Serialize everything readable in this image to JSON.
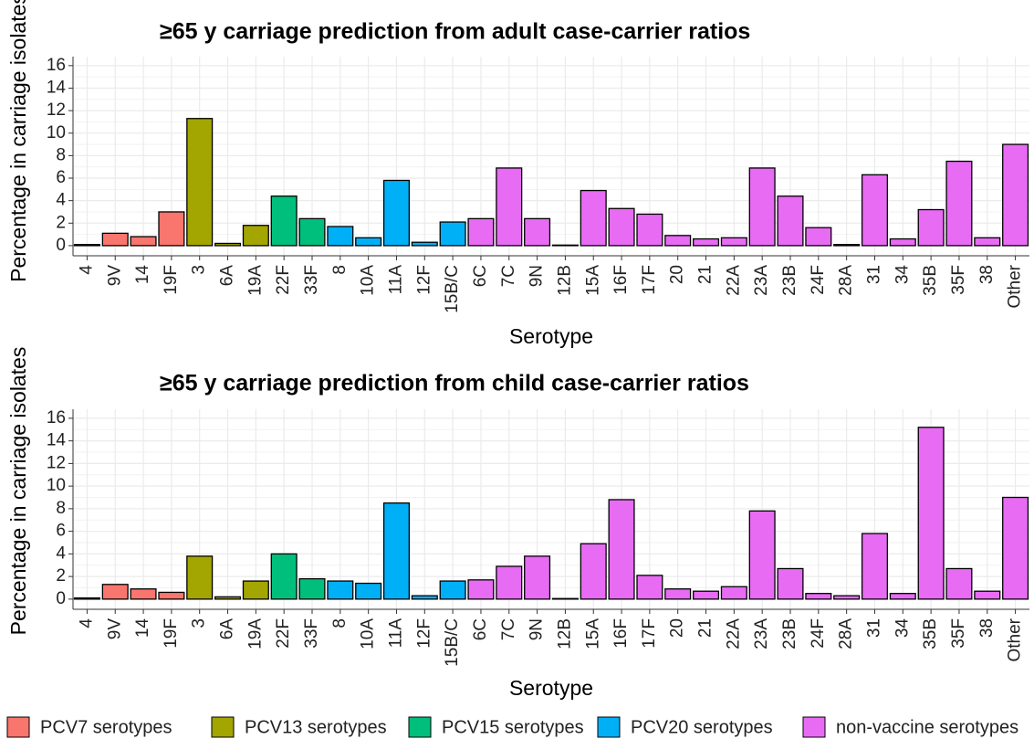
{
  "chart_data": [
    {
      "type": "bar",
      "title": "≥65 y carriage prediction from adult case-carrier ratios",
      "xlabel": "Serotype",
      "ylabel": "Percentage in carriage isolates",
      "categories": [
        "4",
        "9V",
        "14",
        "19F",
        "3",
        "6A",
        "19A",
        "22F",
        "33F",
        "8",
        "10A",
        "11A",
        "12F",
        "15B/C",
        "6C",
        "7C",
        "9N",
        "12B",
        "15A",
        "16F",
        "17F",
        "20",
        "21",
        "22A",
        "23A",
        "23B",
        "24F",
        "28A",
        "31",
        "34",
        "35B",
        "35F",
        "38",
        "Other"
      ],
      "series": [
        {
          "color": "#F8766D",
          "values": [
            0.1,
            1.1,
            0.8,
            3.0,
            null,
            null,
            null,
            null,
            null,
            null,
            null,
            null,
            null,
            null,
            null,
            null,
            null,
            null,
            null,
            null,
            null,
            null,
            null,
            null,
            null,
            null,
            null,
            null,
            null,
            null,
            null,
            null,
            null,
            null
          ]
        },
        {
          "color": "#A3A500",
          "values": [
            null,
            null,
            null,
            null,
            11.3,
            0.2,
            1.8,
            null,
            null,
            null,
            null,
            null,
            null,
            null,
            null,
            null,
            null,
            null,
            null,
            null,
            null,
            null,
            null,
            null,
            null,
            null,
            null,
            null,
            null,
            null,
            null,
            null,
            null,
            null
          ]
        },
        {
          "color": "#00BF7D",
          "values": [
            null,
            null,
            null,
            null,
            null,
            null,
            null,
            4.4,
            2.4,
            null,
            null,
            null,
            null,
            null,
            null,
            null,
            null,
            null,
            null,
            null,
            null,
            null,
            null,
            null,
            null,
            null,
            null,
            null,
            null,
            null,
            null,
            null,
            null,
            null
          ]
        },
        {
          "color": "#00B0F6",
          "values": [
            null,
            null,
            null,
            null,
            null,
            null,
            null,
            null,
            null,
            1.7,
            0.7,
            5.8,
            0.3,
            2.1,
            null,
            null,
            null,
            null,
            null,
            null,
            null,
            null,
            null,
            null,
            null,
            null,
            null,
            null,
            null,
            null,
            null,
            null,
            null,
            null
          ]
        },
        {
          "color": "#E76BF3",
          "values": [
            null,
            null,
            null,
            null,
            null,
            null,
            null,
            null,
            null,
            null,
            null,
            null,
            null,
            null,
            2.4,
            6.9,
            2.4,
            0.05,
            4.9,
            3.3,
            2.8,
            0.9,
            0.6,
            0.7,
            6.9,
            4.4,
            1.6,
            0.1,
            6.3,
            0.6,
            3.2,
            7.5,
            0.7,
            9.0
          ]
        }
      ],
      "ylim": [
        -0.9,
        16.8
      ],
      "yticks": [
        0,
        2,
        4,
        6,
        8,
        10,
        12,
        14,
        16
      ],
      "grid": true
    },
    {
      "type": "bar",
      "title": "≥65 y carriage prediction from child case-carrier ratios",
      "xlabel": "Serotype",
      "ylabel": "Percentage in carriage isolates",
      "categories": [
        "4",
        "9V",
        "14",
        "19F",
        "3",
        "6A",
        "19A",
        "22F",
        "33F",
        "8",
        "10A",
        "11A",
        "12F",
        "15B/C",
        "6C",
        "7C",
        "9N",
        "12B",
        "15A",
        "16F",
        "17F",
        "20",
        "21",
        "22A",
        "23A",
        "23B",
        "24F",
        "28A",
        "31",
        "34",
        "35B",
        "35F",
        "38",
        "Other"
      ],
      "series": [
        {
          "name": "PCV7 serotypes",
          "color": "#F8766D",
          "values": [
            0.1,
            1.3,
            0.9,
            0.6,
            null,
            null,
            null,
            null,
            null,
            null,
            null,
            null,
            null,
            null,
            null,
            null,
            null,
            null,
            null,
            null,
            null,
            null,
            null,
            null,
            null,
            null,
            null,
            null,
            null,
            null,
            null,
            null,
            null,
            null
          ]
        },
        {
          "name": "PCV13 serotypes",
          "color": "#A3A500",
          "values": [
            null,
            null,
            null,
            null,
            3.8,
            0.2,
            1.6,
            null,
            null,
            null,
            null,
            null,
            null,
            null,
            null,
            null,
            null,
            null,
            null,
            null,
            null,
            null,
            null,
            null,
            null,
            null,
            null,
            null,
            null,
            null,
            null,
            null,
            null,
            null
          ]
        },
        {
          "name": "PCV15 serotypes",
          "color": "#00BF7D",
          "values": [
            null,
            null,
            null,
            null,
            null,
            null,
            null,
            4.0,
            1.8,
            null,
            null,
            null,
            null,
            null,
            null,
            null,
            null,
            null,
            null,
            null,
            null,
            null,
            null,
            null,
            null,
            null,
            null,
            null,
            null,
            null,
            null,
            null,
            null,
            null
          ]
        },
        {
          "name": "PCV20 serotypes",
          "color": "#00B0F6",
          "values": [
            null,
            null,
            null,
            null,
            null,
            null,
            null,
            null,
            null,
            1.6,
            1.4,
            8.5,
            0.3,
            1.6,
            null,
            null,
            null,
            null,
            null,
            null,
            null,
            null,
            null,
            null,
            null,
            null,
            null,
            null,
            null,
            null,
            null,
            null,
            null,
            null
          ]
        },
        {
          "name": "non-vaccine serotypes",
          "color": "#E76BF3",
          "values": [
            null,
            null,
            null,
            null,
            null,
            null,
            null,
            null,
            null,
            null,
            null,
            null,
            null,
            null,
            1.7,
            2.9,
            3.8,
            0.05,
            4.9,
            8.8,
            2.1,
            0.9,
            0.7,
            1.1,
            7.8,
            2.7,
            0.5,
            0.3,
            5.8,
            0.5,
            15.2,
            2.7,
            0.7,
            9.0
          ]
        }
      ],
      "ylim": [
        -0.9,
        16.8
      ],
      "yticks": [
        0,
        2,
        4,
        6,
        8,
        10,
        12,
        14,
        16
      ],
      "grid": true
    }
  ]
}
